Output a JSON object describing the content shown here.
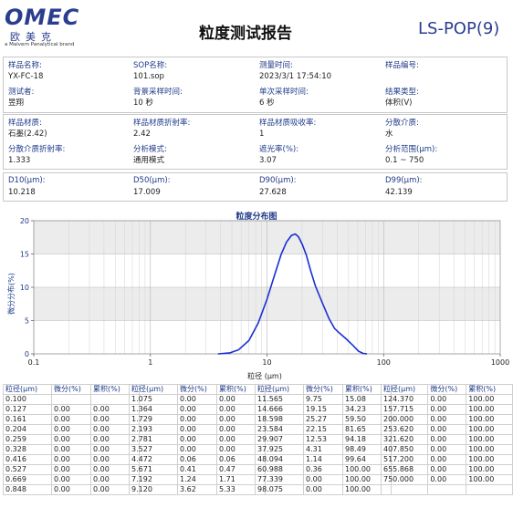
{
  "logo": {
    "main": "OMEC",
    "cn": "欧美克",
    "sub": "a Malvern Panalytical brand"
  },
  "title": "粒度测试报告",
  "model": "LS-POP(9)",
  "info_rows": [
    [
      {
        "label": "样品名称:",
        "value": "YX-FC-18"
      },
      {
        "label": "SOP名称:",
        "value": "101.sop"
      },
      {
        "label": "测量时间:",
        "value": "2023/3/1 17:54:10"
      },
      {
        "label": "样品编号:",
        "value": ""
      }
    ],
    [
      {
        "label": "测试者:",
        "value": "昱翔"
      },
      {
        "label": "背景采样时间:",
        "value": "10 秒"
      },
      {
        "label": "单次采样时间:",
        "value": "6 秒"
      },
      {
        "label": "结果类型:",
        "value": "体积(V)"
      }
    ],
    [
      {
        "label": "样品材质:",
        "value": "石墨(2.42)"
      },
      {
        "label": "样品材质折射率:",
        "value": "2.42"
      },
      {
        "label": "样品材质吸收率:",
        "value": "1"
      },
      {
        "label": "分散介质:",
        "value": "水"
      }
    ],
    [
      {
        "label": "分散介质折射率:",
        "value": "1.333"
      },
      {
        "label": "分析模式:",
        "value": "通用模式"
      },
      {
        "label": "遮光率(%):",
        "value": "3.07"
      },
      {
        "label": "分析范围(μm):",
        "value": "0.1 ~ 750"
      }
    ]
  ],
  "d_values": [
    {
      "label": "D10(μm):",
      "value": "10.218"
    },
    {
      "label": "D50(μm):",
      "value": "17.009"
    },
    {
      "label": "D90(μm):",
      "value": "27.628"
    },
    {
      "label": "D99(μm):",
      "value": "42.139"
    }
  ],
  "chart_data": {
    "type": "line",
    "title": "粒度分布图",
    "xlabel": "粒径 (μm)",
    "ylabel": "微分分布(%)",
    "x_scale": "log",
    "xlim": [
      0.1,
      1000
    ],
    "ylim": [
      0,
      20
    ],
    "x_ticks": [
      "0.1",
      "1",
      "10",
      "100",
      "1000"
    ],
    "y_ticks": [
      "0",
      "5",
      "10",
      "15",
      "20"
    ],
    "grid": true,
    "series": [
      {
        "color": "#1a2fd6",
        "x": [
          3.8,
          4.8,
          5.7,
          7.0,
          8.4,
          10.0,
          11.6,
          13.2,
          14.7,
          16.2,
          17.5,
          18.6,
          20.0,
          21.8,
          23.6,
          26.0,
          29.9,
          34.0,
          38.0,
          42.0,
          48.1,
          55.0,
          61.0,
          67.0,
          72.0
        ],
        "y": [
          0.0,
          0.15,
          0.6,
          2.0,
          4.6,
          8.2,
          11.8,
          14.9,
          16.8,
          17.8,
          18.0,
          17.6,
          16.5,
          14.8,
          12.6,
          10.2,
          7.6,
          5.3,
          3.8,
          3.1,
          2.2,
          1.2,
          0.4,
          0.05,
          0.0
        ]
      }
    ]
  },
  "table": {
    "headers": [
      "粒径(μm)",
      "微分(%)",
      "累积(%)"
    ],
    "groups": [
      [
        [
          "0.100",
          "",
          ""
        ],
        [
          "0.127",
          "0.00",
          "0.00"
        ],
        [
          "0.161",
          "0.00",
          "0.00"
        ],
        [
          "0.204",
          "0.00",
          "0.00"
        ],
        [
          "0.259",
          "0.00",
          "0.00"
        ],
        [
          "0.328",
          "0.00",
          "0.00"
        ],
        [
          "0.416",
          "0.00",
          "0.00"
        ],
        [
          "0.527",
          "0.00",
          "0.00"
        ],
        [
          "0.669",
          "0.00",
          "0.00"
        ],
        [
          "0.848",
          "0.00",
          "0.00"
        ]
      ],
      [
        [
          "1.075",
          "0.00",
          "0.00"
        ],
        [
          "1.364",
          "0.00",
          "0.00"
        ],
        [
          "1.729",
          "0.00",
          "0.00"
        ],
        [
          "2.193",
          "0.00",
          "0.00"
        ],
        [
          "2.781",
          "0.00",
          "0.00"
        ],
        [
          "3.527",
          "0.00",
          "0.00"
        ],
        [
          "4.472",
          "0.06",
          "0.06"
        ],
        [
          "5.671",
          "0.41",
          "0.47"
        ],
        [
          "7.192",
          "1.24",
          "1.71"
        ],
        [
          "9.120",
          "3.62",
          "5.33"
        ]
      ],
      [
        [
          "11.565",
          "9.75",
          "15.08"
        ],
        [
          "14.666",
          "19.15",
          "34.23"
        ],
        [
          "18.598",
          "25.27",
          "59.50"
        ],
        [
          "23.584",
          "22.15",
          "81.65"
        ],
        [
          "29.907",
          "12.53",
          "94.18"
        ],
        [
          "37.925",
          "4.31",
          "98.49"
        ],
        [
          "48.094",
          "1.14",
          "99.64"
        ],
        [
          "60.988",
          "0.36",
          "100.00"
        ],
        [
          "77.339",
          "0.00",
          "100.00"
        ],
        [
          "98.075",
          "0.00",
          "100.00"
        ]
      ],
      [
        [
          "124.370",
          "0.00",
          "100.00"
        ],
        [
          "157.715",
          "0.00",
          "100.00"
        ],
        [
          "200.000",
          "0.00",
          "100.00"
        ],
        [
          "253.620",
          "0.00",
          "100.00"
        ],
        [
          "321.620",
          "0.00",
          "100.00"
        ],
        [
          "407.850",
          "0.00",
          "100.00"
        ],
        [
          "517.200",
          "0.00",
          "100.00"
        ],
        [
          "655.868",
          "0.00",
          "100.00"
        ],
        [
          "750.000",
          "0.00",
          "100.00"
        ],
        [
          "",
          "",
          ""
        ]
      ]
    ]
  }
}
